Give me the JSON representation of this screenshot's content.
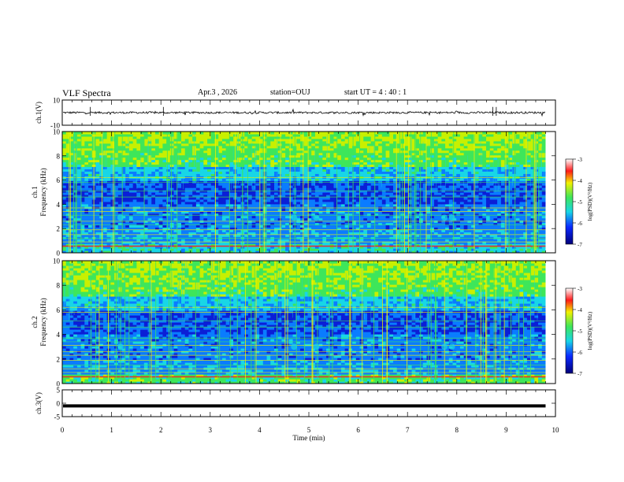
{
  "header": {
    "title": "VLF Spectra",
    "date": "Apr.3  , 2026",
    "station": "station=OUJ",
    "start_time": "start  UT  =   4 : 40 : 1"
  },
  "chart_data": [
    {
      "type": "line",
      "id": "ch1-waveform",
      "ylabel": "ch.1(V)",
      "ylim": [
        -10,
        10
      ],
      "yticks": [
        "10",
        "-10"
      ],
      "xlim": [
        0,
        10
      ],
      "description": "noisy waveform centred near 0 V, amplitude about 1 V, occasional spikes"
    },
    {
      "type": "heatmap",
      "id": "ch1-spectrogram",
      "ylabel_top": "ch.1",
      "ylabel": "Frequency  (kHz)",
      "ylim": [
        0,
        10
      ],
      "yticks": [
        "0",
        "2",
        "4",
        "6",
        "8",
        "10"
      ],
      "xlim": [
        0,
        10
      ],
      "data_end_min": 9.8,
      "colorbar": {
        "label": "log(PSD)(V²/Hz)",
        "range": [
          -7,
          -3
        ],
        "ticks": [
          "-3",
          "-4",
          "-5",
          "-6",
          "-7"
        ]
      }
    },
    {
      "type": "heatmap",
      "id": "ch2-spectrogram",
      "ylabel_top": "ch.2",
      "ylabel": "Frequency  (kHz)",
      "ylim": [
        0,
        10
      ],
      "yticks": [
        "0",
        "2",
        "4",
        "6",
        "8",
        "10"
      ],
      "xlim": [
        0,
        10
      ],
      "data_end_min": 9.8,
      "colorbar": {
        "label": "log(PSD)(V²/Hz)",
        "range": [
          -7,
          -3
        ],
        "ticks": [
          "-3",
          "-4",
          "-5",
          "-6",
          "-7"
        ]
      }
    },
    {
      "type": "line",
      "id": "ch3-waveform",
      "ylabel": "ch.3(V)",
      "ylim": [
        -5,
        5
      ],
      "yticks": [
        "5",
        "0",
        "-5"
      ],
      "xlim": [
        0,
        10
      ],
      "constant_value": -1,
      "xlabel": "Time  (min)",
      "xticks": [
        "0",
        "1",
        "2",
        "3",
        "4",
        "5",
        "6",
        "7",
        "8",
        "9",
        "10"
      ]
    }
  ],
  "colors": {
    "low": "#00007a",
    "mid": "#0a5bff",
    "cyan": "#18d6e6",
    "green": "#3ee65a",
    "yellow": "#f2f200",
    "red": "#ff1a1a"
  }
}
